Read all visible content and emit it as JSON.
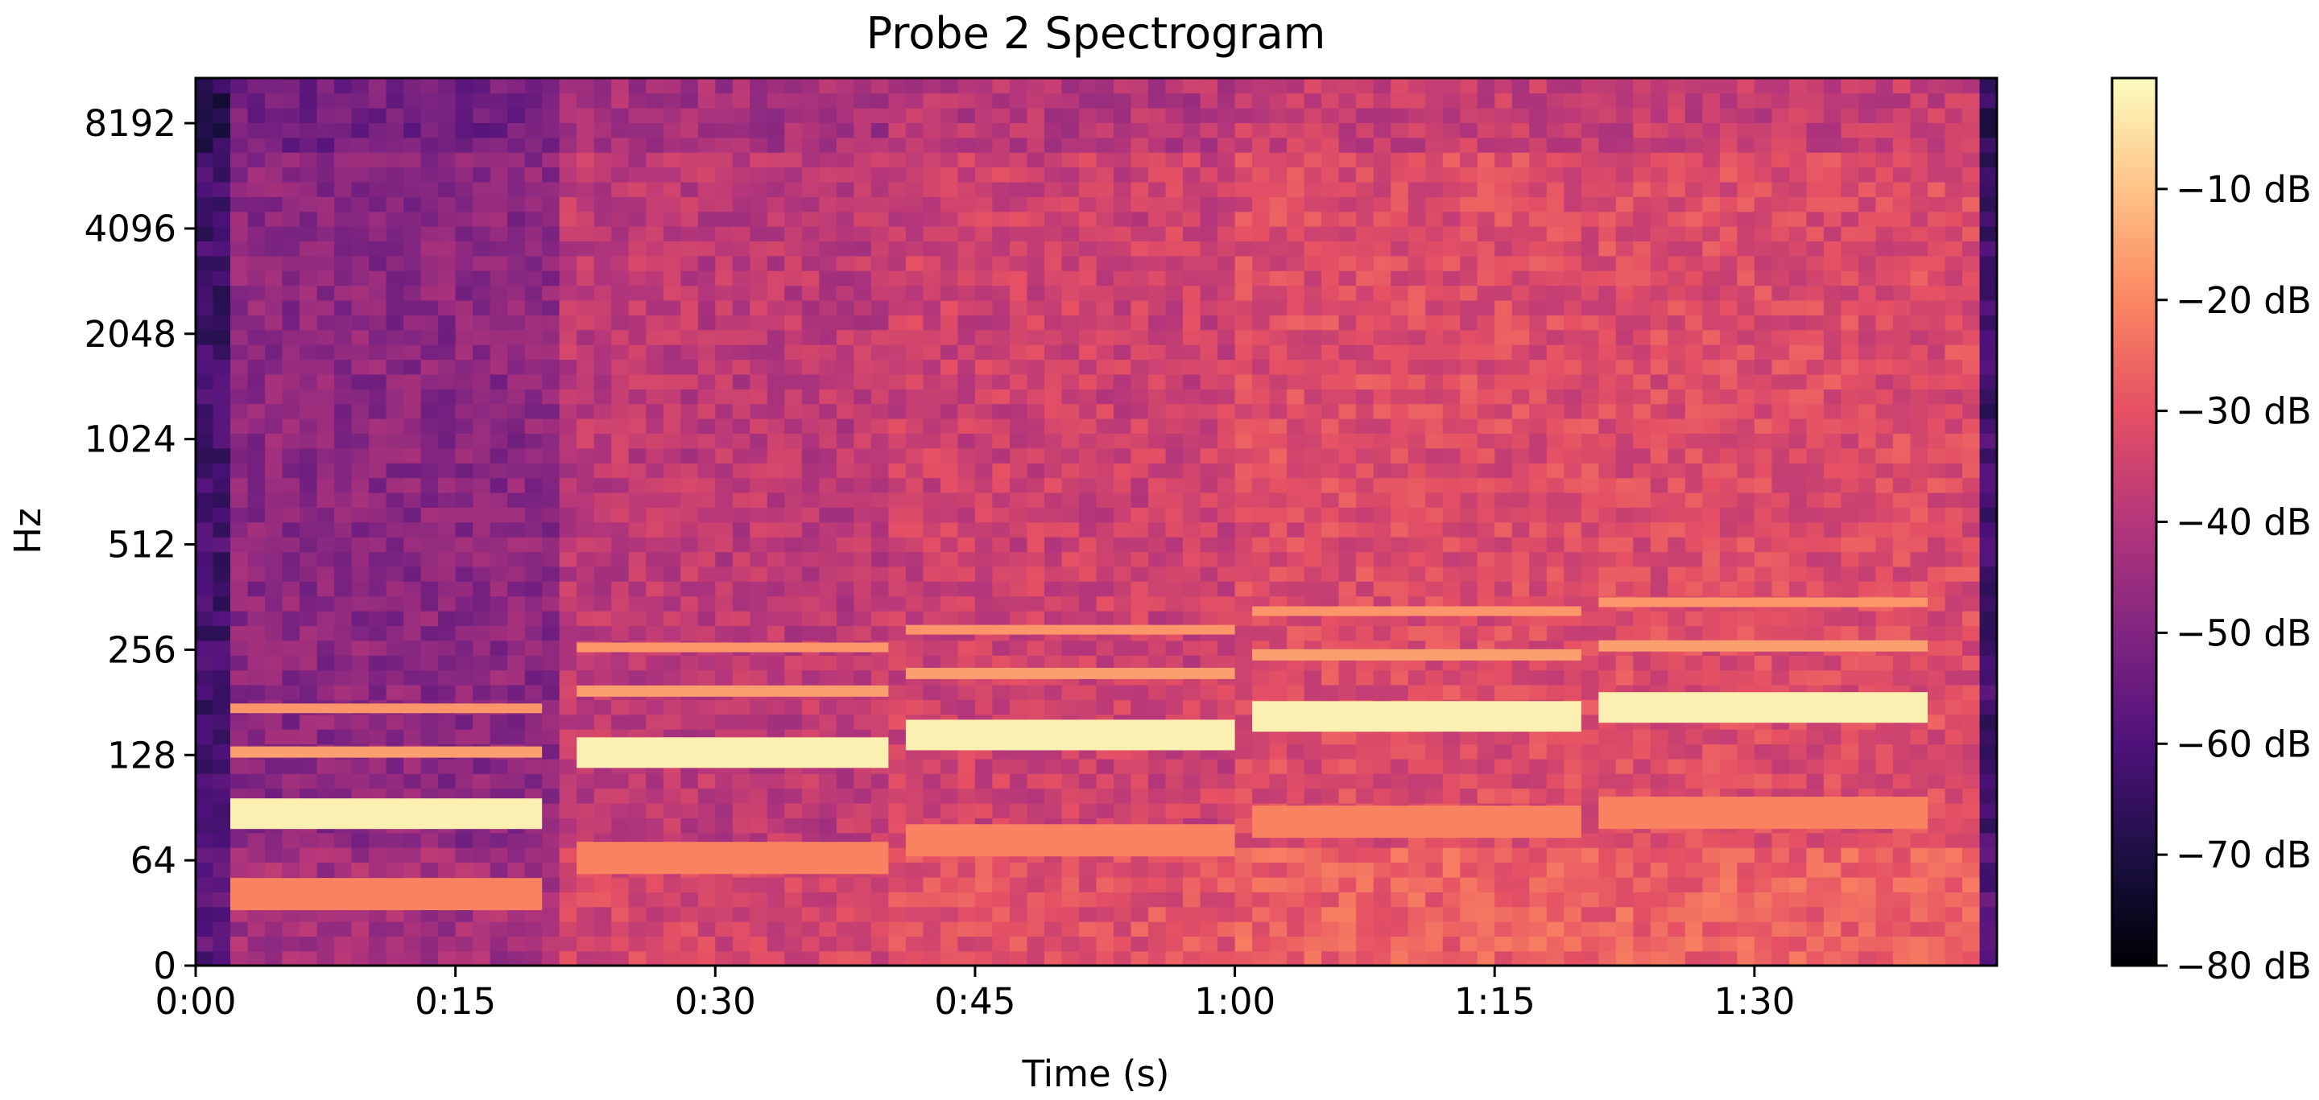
{
  "chart_data": {
    "type": "heatmap",
    "title": "Probe 2 Spectrogram",
    "xlabel": "Time (s)",
    "ylabel": "Hz",
    "y_scale": "symlog",
    "x_range": [
      0,
      104
    ],
    "y_range": [
      0,
      11025
    ],
    "x_ticks": [
      {
        "value": 0,
        "label": "0:00"
      },
      {
        "value": 15,
        "label": "0:15"
      },
      {
        "value": 30,
        "label": "0:30"
      },
      {
        "value": 45,
        "label": "0:45"
      },
      {
        "value": 60,
        "label": "1:00"
      },
      {
        "value": 75,
        "label": "1:15"
      },
      {
        "value": 90,
        "label": "1:30"
      }
    ],
    "y_ticks": [
      {
        "value": 0,
        "label": "0"
      },
      {
        "value": 64,
        "label": "64"
      },
      {
        "value": 128,
        "label": "128"
      },
      {
        "value": 256,
        "label": "256"
      },
      {
        "value": 512,
        "label": "512"
      },
      {
        "value": 1024,
        "label": "1024"
      },
      {
        "value": 2048,
        "label": "2048"
      },
      {
        "value": 4096,
        "label": "4096"
      },
      {
        "value": 8192,
        "label": "8192"
      }
    ],
    "colorbar": {
      "colormap": "magma",
      "range": [
        -80,
        0
      ],
      "unit": "dB",
      "ticks": [
        {
          "value": -10,
          "label": "−10 dB"
        },
        {
          "value": -20,
          "label": "−20 dB"
        },
        {
          "value": -30,
          "label": "−30 dB"
        },
        {
          "value": -40,
          "label": "−40 dB"
        },
        {
          "value": -50,
          "label": "−50 dB"
        },
        {
          "value": -60,
          "label": "−60 dB"
        },
        {
          "value": -70,
          "label": "−70 dB"
        },
        {
          "value": -80,
          "label": "−80 dB"
        }
      ]
    },
    "tone_segments": [
      {
        "t_start": 2,
        "t_end": 20,
        "freq": 87
      },
      {
        "t_start": 22,
        "t_end": 40,
        "freq": 130
      },
      {
        "t_start": 41,
        "t_end": 60,
        "freq": 146
      },
      {
        "t_start": 61,
        "t_end": 80,
        "freq": 165
      },
      {
        "t_start": 81,
        "t_end": 100,
        "freq": 175
      }
    ],
    "colors": {
      "axis": "#000000",
      "background": "#ffffff"
    }
  }
}
